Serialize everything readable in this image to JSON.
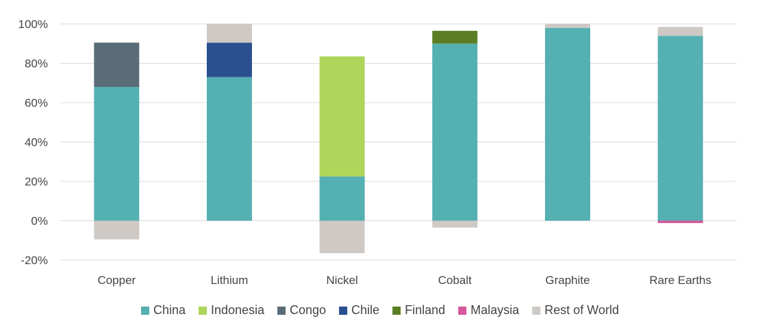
{
  "chart_data": {
    "type": "bar",
    "stacked": true,
    "categories": [
      "Copper",
      "Lithium",
      "Nickel",
      "Cobalt",
      "Graphite",
      "Rare Earths"
    ],
    "y_ticks": [
      "100%",
      "80%",
      "60%",
      "40%",
      "20%",
      "0%",
      "-20%"
    ],
    "y_tick_values": [
      100,
      80,
      60,
      40,
      20,
      0,
      -20
    ],
    "ylim": [
      -20,
      100
    ],
    "grid": true,
    "legend_position": "bottom",
    "series": [
      {
        "name": "China",
        "color": "#55B0B2",
        "values": [
          68,
          73,
          22.5,
          90,
          98,
          94
        ]
      },
      {
        "name": "Indonesia",
        "color": "#AED65A",
        "values": [
          0,
          0,
          61,
          0,
          0,
          0
        ]
      },
      {
        "name": "Congo",
        "color": "#5A6C78",
        "values": [
          22.5,
          0,
          0,
          0,
          0,
          0
        ]
      },
      {
        "name": "Chile",
        "color": "#2A4F8F",
        "values": [
          0,
          17.5,
          0,
          0,
          0,
          0
        ]
      },
      {
        "name": "Finland",
        "color": "#5B7E24",
        "values": [
          0,
          0,
          0,
          6.5,
          0,
          0
        ]
      },
      {
        "name": "Malaysia",
        "color": "#D6589B",
        "values": [
          0,
          0,
          0,
          0,
          0,
          -1.2
        ]
      },
      {
        "name": "Rest of World",
        "color": "#CEC9C5",
        "values": [
          -9.5,
          9.5,
          -16.5,
          -3.5,
          2,
          4.5
        ]
      }
    ]
  }
}
